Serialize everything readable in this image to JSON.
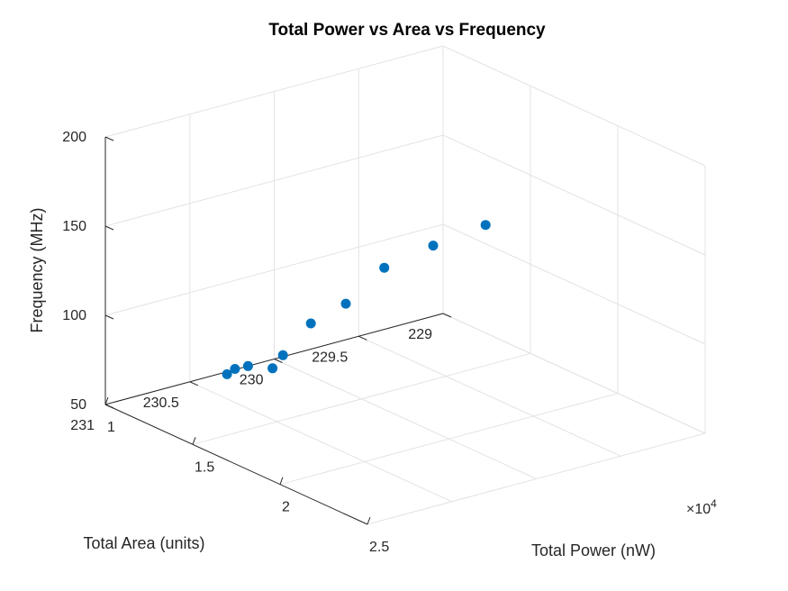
{
  "chart_data": {
    "type": "scatter",
    "title": "Total Power vs Area vs Frequency",
    "xlabel": "Total Power (nW)",
    "ylabel": "Total Area (units)",
    "zlabel": "Frequency (MHz)",
    "x_exponent_label": "×10",
    "x_exponent_power": "4",
    "xlim": [
      10000,
      25000
    ],
    "ylim": [
      229,
      231
    ],
    "zlim": [
      50,
      200
    ],
    "xticks": [
      10000,
      15000,
      20000,
      25000
    ],
    "xtick_labels": [
      "1",
      "1.5",
      "2",
      "2.5"
    ],
    "yticks": [
      229,
      229.5,
      230,
      230.5,
      231
    ],
    "ytick_labels": [
      "229",
      "229.5",
      "230",
      "230.5",
      "231"
    ],
    "zticks": [
      50,
      100,
      150,
      200
    ],
    "ztick_labels": [
      "50",
      "100",
      "150",
      "200"
    ],
    "grid": true,
    "marker_color": "#0072bd",
    "points": [
      {
        "x": 10200,
        "y": 230.3,
        "z": 50
      },
      {
        "x": 10650,
        "y": 230.3,
        "z": 55
      },
      {
        "x": 11400,
        "y": 230.3,
        "z": 60
      },
      {
        "x": 12800,
        "y": 230.3,
        "z": 65
      },
      {
        "x": 13400,
        "y": 230.3,
        "z": 75
      },
      {
        "x": 15000,
        "y": 230.3,
        "z": 100
      },
      {
        "x": 17000,
        "y": 230.3,
        "z": 120
      },
      {
        "x": 19200,
        "y": 230.3,
        "z": 150
      },
      {
        "x": 22000,
        "y": 230.3,
        "z": 175
      },
      {
        "x": 25000,
        "y": 230.3,
        "z": 200
      }
    ]
  }
}
